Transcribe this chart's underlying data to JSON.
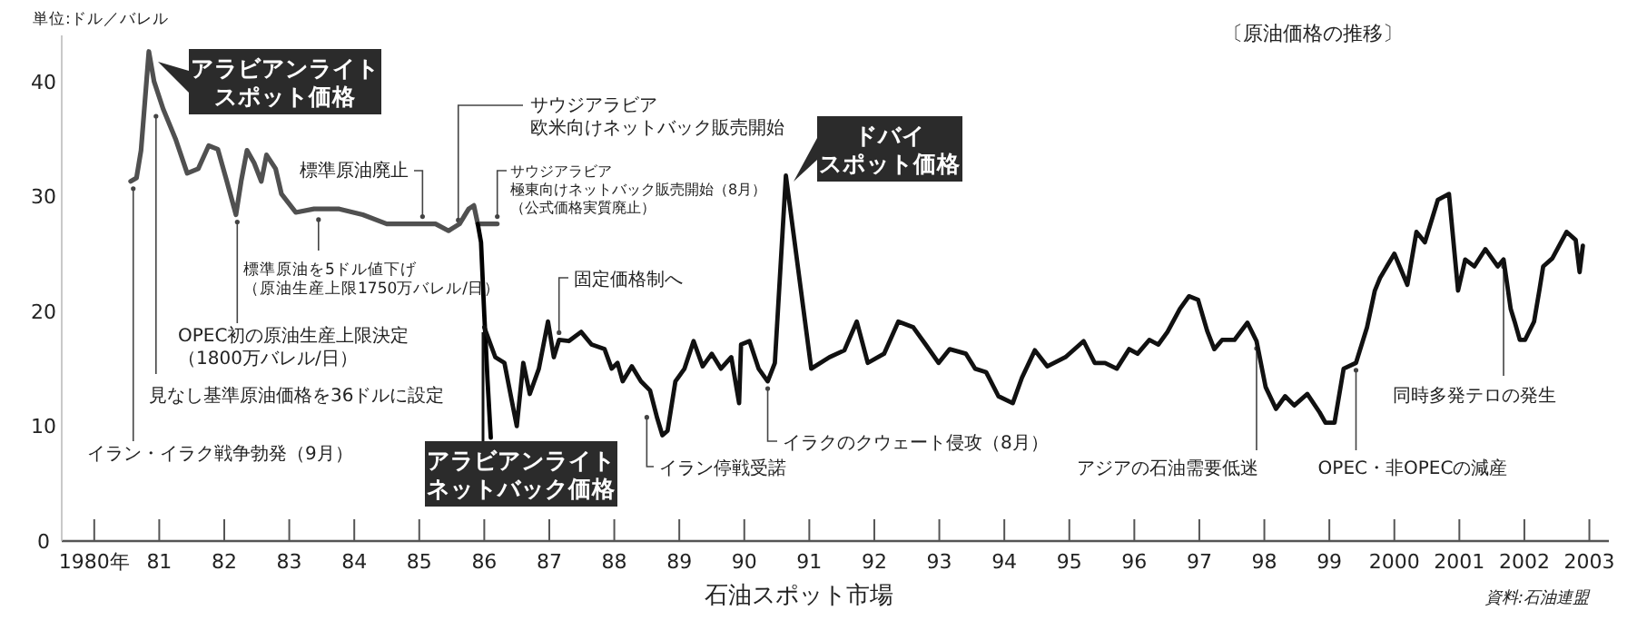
{
  "chart_data": {
    "type": "line",
    "title": "〔原油価格の推移〕",
    "ylabel": "単位:ドル／バレル",
    "xlabel": "石油スポット市場",
    "xlim": [
      1979.5,
      2003.3
    ],
    "ylim": [
      0,
      44
    ],
    "xticks": [
      {
        "value": 1980,
        "label": "1980年"
      },
      {
        "value": 1981,
        "label": "81"
      },
      {
        "value": 1982,
        "label": "82"
      },
      {
        "value": 1983,
        "label": "83"
      },
      {
        "value": 1984,
        "label": "84"
      },
      {
        "value": 1985,
        "label": "85"
      },
      {
        "value": 1986,
        "label": "86"
      },
      {
        "value": 1987,
        "label": "87"
      },
      {
        "value": 1988,
        "label": "88"
      },
      {
        "value": 1989,
        "label": "89"
      },
      {
        "value": 1990,
        "label": "90"
      },
      {
        "value": 1991,
        "label": "91"
      },
      {
        "value": 1992,
        "label": "92"
      },
      {
        "value": 1993,
        "label": "93"
      },
      {
        "value": 1994,
        "label": "94"
      },
      {
        "value": 1995,
        "label": "95"
      },
      {
        "value": 1996,
        "label": "96"
      },
      {
        "value": 1997,
        "label": "97"
      },
      {
        "value": 1998,
        "label": "98"
      },
      {
        "value": 1999,
        "label": "99"
      },
      2000,
      2001,
      2002,
      2003
    ],
    "yticks": [
      0,
      10,
      20,
      30,
      40
    ],
    "grid": false,
    "series": [
      {
        "name": "アラビアンライトスポット価格",
        "color": "#505050",
        "x": [
          1980.56,
          1980.65,
          1980.72,
          1980.84,
          1980.92,
          1981.06,
          1981.25,
          1981.43,
          1981.6,
          1981.76,
          1981.9,
          1982.04,
          1982.18,
          1982.26,
          1982.35,
          1982.46,
          1982.57,
          1982.65,
          1982.79,
          1982.88,
          1983.1,
          1983.38,
          1983.77,
          1984.13,
          1984.5,
          1984.89,
          1985.25,
          1985.45,
          1985.62,
          1985.76,
          1985.84,
          1985.9,
          1986.2
        ],
        "values": [
          31.3,
          31.6,
          34,
          42.6,
          40,
          37.6,
          35,
          32,
          32.4,
          34.4,
          34.1,
          31.3,
          28.4,
          31.3,
          34,
          32.9,
          31.3,
          33.6,
          32.4,
          30.2,
          28.6,
          28.9,
          28.9,
          28.4,
          27.6,
          27.6,
          27.6,
          27,
          27.6,
          28.9,
          29.2,
          27.6,
          27.6
        ]
      },
      {
        "name": "アラビアンライトネットバック価格",
        "color": "#000000",
        "x": [
          1985.9,
          1985.95,
          1986.0,
          1986.05,
          1986.1
        ],
        "values": [
          27.6,
          26,
          19.7,
          14,
          9
        ]
      },
      {
        "name": "ドバイスポット価格",
        "color": "#111111",
        "x": [
          1986.0,
          1986.17,
          1986.31,
          1986.42,
          1986.5,
          1986.6,
          1986.7,
          1986.84,
          1986.98,
          1987.07,
          1987.15,
          1987.3,
          1987.49,
          1987.65,
          1987.85,
          1987.96,
          1988.05,
          1988.13,
          1988.27,
          1988.41,
          1988.55,
          1988.66,
          1988.74,
          1988.82,
          1988.94,
          1989.08,
          1989.22,
          1989.36,
          1989.5,
          1989.64,
          1989.8,
          1989.92,
          1989.95,
          1990.08,
          1990.22,
          1990.36,
          1990.47,
          1990.64,
          1991.03,
          1991.31,
          1991.54,
          1991.73,
          1991.9,
          1992.15,
          1992.37,
          1992.6,
          1992.79,
          1992.99,
          1993.16,
          1993.41,
          1993.55,
          1993.72,
          1993.91,
          1994.13,
          1994.27,
          1994.47,
          1994.66,
          1994.94,
          1995.22,
          1995.39,
          1995.55,
          1995.73,
          1995.92,
          1996.05,
          1996.23,
          1996.37,
          1996.51,
          1996.7,
          1996.84,
          1996.98,
          1997.12,
          1997.23,
          1997.35,
          1997.54,
          1997.74,
          1997.88,
          1998.02,
          1998.18,
          1998.32,
          1998.46,
          1998.66,
          1998.85,
          1998.94,
          1999.08,
          1999.22,
          1999.41,
          1999.58,
          1999.7,
          1999.78,
          2000.0,
          2000.2,
          2000.34,
          2000.47,
          2000.67,
          2000.84,
          2000.98,
          2001.09,
          2001.23,
          2001.4,
          2001.59,
          2001.68,
          2001.79,
          2001.85,
          2001.93,
          2002.01,
          2002.15,
          2002.23,
          2002.29,
          2002.43,
          2002.65,
          2002.79,
          2002.85,
          2002.9
        ],
        "values": [
          18.6,
          16,
          15.5,
          12.3,
          10,
          15.5,
          12.8,
          15,
          19.1,
          16,
          17.5,
          17.4,
          18.2,
          17.1,
          16.7,
          15,
          15.5,
          13.9,
          15.2,
          13.9,
          13.1,
          10.7,
          9.2,
          9.6,
          13.9,
          15,
          17.4,
          15.2,
          16.3,
          15,
          16,
          12,
          17.1,
          17.4,
          15,
          13.9,
          15.5,
          31.8,
          15,
          16,
          16.6,
          19.1,
          15.5,
          16.3,
          19.1,
          18.6,
          17.1,
          15.5,
          16.7,
          16.3,
          15,
          14.7,
          12.6,
          12,
          14.2,
          16.6,
          15.2,
          16,
          17.4,
          15.5,
          15.5,
          15,
          16.7,
          16.3,
          17.5,
          17.1,
          18.2,
          20.2,
          21.3,
          21,
          18.3,
          16.7,
          17.5,
          17.5,
          19,
          17.4,
          13.4,
          11.5,
          12.6,
          11.8,
          12.8,
          11.2,
          10.3,
          10.3,
          15,
          15.5,
          18.6,
          21.8,
          22.9,
          25,
          22.3,
          26.9,
          26,
          29.7,
          30.2,
          21.8,
          24.5,
          23.9,
          25.4,
          23.9,
          24.5,
          20.2,
          19.1,
          17.5,
          17.5,
          19.1,
          21.8,
          23.9,
          24.6,
          26.9,
          26.2,
          23.4,
          25.7
        ]
      }
    ],
    "annotations": [
      {
        "text": "イラン・イラク戦争勃発（9月）",
        "x": 1980.6,
        "y": 31.3
      },
      {
        "text": "見なし基準原油価格を36ドルに設定",
        "x": 1980.95,
        "y": 37.6
      },
      {
        "text": "OPEC初の原油生産上限決定（1800万バレル/日）",
        "x": 1982.2,
        "y": 28.4
      },
      {
        "text": "標準原油を5ドル値下げ（原油生産上限1750万バレル/日）",
        "x": 1983.45,
        "y": 28.6
      },
      {
        "text": "標準原油廃止",
        "x": 1985.05,
        "y": 27.6
      },
      {
        "text": "サウジアラビア欧米向けネットバック販売開始",
        "x": 1985.6,
        "y": 27.3
      },
      {
        "text": "サウジアラビア極東向けネットバック販売開始（8月）（公式価格実質廃止）",
        "x": 1986.2,
        "y": 27.6
      },
      {
        "text": "固定価格制へ",
        "x": 1987.15,
        "y": 17.5
      },
      {
        "text": "イラン停戦受諾",
        "x": 1988.5,
        "y": 11.4
      },
      {
        "text": "イラクのクウェート侵攻（8月）",
        "x": 1990.36,
        "y": 13.9
      },
      {
        "text": "アジアの石油需要低迷",
        "x": 1997.88,
        "y": 17.4
      },
      {
        "text": "OPEC・非OPECの減産",
        "x": 1999.41,
        "y": 15.5
      },
      {
        "text": "同時多発テロの発生",
        "x": 2001.68,
        "y": 24.5
      },
      "資料:石油連盟"
    ]
  }
}
